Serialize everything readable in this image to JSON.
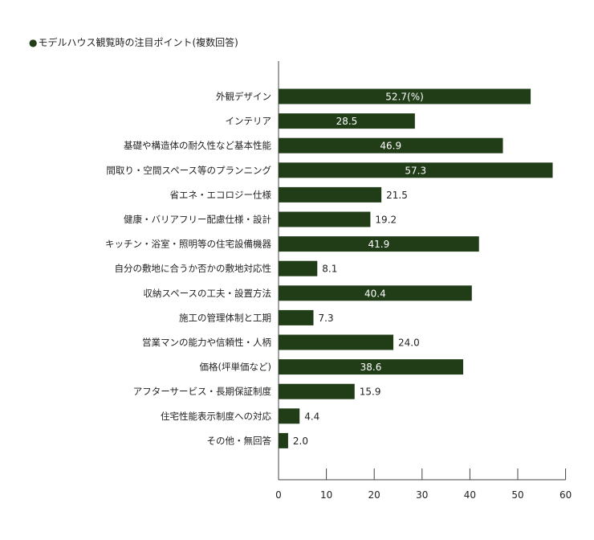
{
  "chart_data": {
    "type": "bar",
    "orientation": "horizontal",
    "title": "モデルハウス観覧時の注目ポイント(複数回答)",
    "title_marker": "●",
    "categories": [
      "外観デザイン",
      "インテリア",
      "基礎や構造体の耐久性など基本性能",
      "間取り・空間スペース等のプランニング",
      "省エネ・エコロジー仕様",
      "健康・バリアフリー配慮仕様・設計",
      "キッチン・浴室・照明等の住宅設備機器",
      "自分の敷地に合うか否かの敷地対応性",
      "収納スペースの工夫・設置方法",
      "施工の管理体制と工期",
      "営業マンの能力や信頼性・人柄",
      "価格(坪単価など)",
      "アフターサービス・長期保証制度",
      "住宅性能表示制度への対応",
      "その他・無回答"
    ],
    "values": [
      52.7,
      28.5,
      46.9,
      57.3,
      21.5,
      19.2,
      41.9,
      8.1,
      40.4,
      7.3,
      24.0,
      38.6,
      15.9,
      4.4,
      2.0
    ],
    "value_labels": [
      "52.7(%)",
      "28.5",
      "46.9",
      "57.3",
      "21.5",
      "19.2",
      "41.9",
      "8.1",
      "40.4",
      "7.3",
      "24.0",
      "38.6",
      "15.9",
      "4.4",
      "2.0"
    ],
    "xlim": [
      0,
      60
    ],
    "xticks": [
      "0",
      "10",
      "20",
      "30",
      "40",
      "50",
      "60"
    ],
    "xlabel": "",
    "ylabel": "",
    "grid": false,
    "legend": "none",
    "colors": {
      "bar": "#213d18",
      "axis": "#444444",
      "text": "#222222",
      "label_inside": "#ffffff"
    }
  }
}
